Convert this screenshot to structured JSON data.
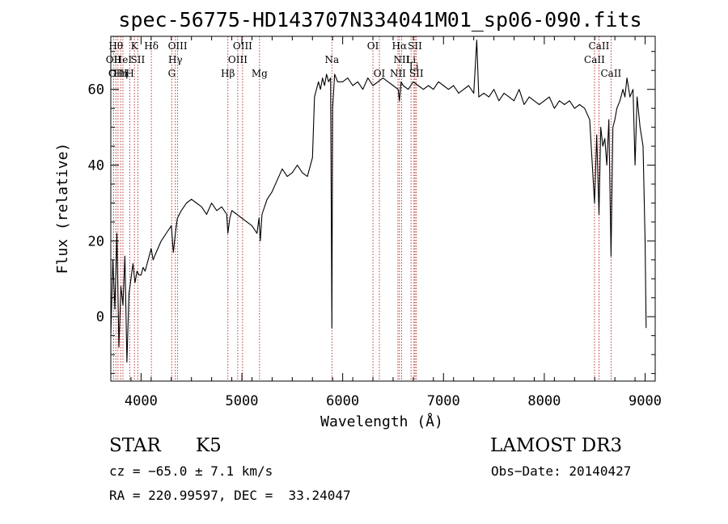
{
  "chart_data": {
    "type": "line",
    "title": "spec-56775-HD143707N334041M01_sp06-090.fits",
    "xlabel": "Wavelength (Å)",
    "ylabel": "Flux (relative)",
    "xlim": [
      3700,
      9100
    ],
    "ylim": [
      -17,
      74
    ],
    "xticks": [
      4000,
      5000,
      6000,
      7000,
      8000,
      9000
    ],
    "yticks": [
      0,
      20,
      40,
      60
    ],
    "x_minor_step": 200,
    "y_minor_step": 5,
    "series": [
      {
        "name": "flux",
        "x": [
          3700,
          3720,
          3740,
          3760,
          3780,
          3800,
          3820,
          3840,
          3860,
          3880,
          3900,
          3920,
          3940,
          3960,
          3980,
          4000,
          4020,
          4040,
          4060,
          4080,
          4100,
          4120,
          4150,
          4200,
          4250,
          4300,
          4320,
          4340,
          4360,
          4400,
          4450,
          4500,
          4550,
          4600,
          4650,
          4700,
          4750,
          4800,
          4850,
          4861,
          4880,
          4900,
          4950,
          5000,
          5050,
          5100,
          5150,
          5170,
          5183,
          5200,
          5250,
          5300,
          5350,
          5400,
          5450,
          5500,
          5550,
          5600,
          5650,
          5700,
          5720,
          5740,
          5760,
          5780,
          5800,
          5820,
          5840,
          5860,
          5880,
          5893,
          5900,
          5920,
          5950,
          6000,
          6050,
          6100,
          6150,
          6200,
          6250,
          6300,
          6350,
          6400,
          6450,
          6500,
          6550,
          6563,
          6580,
          6600,
          6650,
          6700,
          6750,
          6800,
          6850,
          6900,
          6950,
          7000,
          7050,
          7100,
          7150,
          7200,
          7250,
          7300,
          7330,
          7350,
          7400,
          7450,
          7500,
          7550,
          7600,
          7650,
          7700,
          7750,
          7800,
          7850,
          7900,
          7950,
          8000,
          8050,
          8100,
          8150,
          8200,
          8250,
          8300,
          8350,
          8400,
          8450,
          8498,
          8520,
          8542,
          8560,
          8580,
          8600,
          8620,
          8640,
          8662,
          8680,
          8700,
          8720,
          8750,
          8780,
          8800,
          8820,
          8850,
          8880,
          8900,
          8920,
          8950,
          8980,
          9000,
          9010
        ],
        "values": [
          -5,
          15,
          2,
          22,
          -8,
          8,
          3,
          16,
          -12,
          6,
          10,
          14,
          9,
          12,
          11,
          11,
          13,
          12,
          14,
          16,
          18,
          15,
          17,
          20,
          22,
          24,
          17,
          22,
          26,
          28,
          30,
          31,
          30,
          29,
          27,
          30,
          28,
          29,
          27,
          22,
          26,
          28,
          27,
          26,
          25,
          24,
          22,
          26,
          20,
          27,
          31,
          33,
          36,
          39,
          37,
          38,
          40,
          38,
          37,
          42,
          58,
          60,
          62,
          60,
          63,
          61,
          64,
          62,
          63,
          -3,
          55,
          64,
          62,
          62,
          63,
          61,
          62,
          60,
          63,
          61,
          62,
          63,
          62,
          61,
          60,
          57,
          62,
          61,
          60,
          62,
          61,
          60,
          61,
          60,
          62,
          61,
          60,
          61,
          59,
          60,
          61,
          59,
          73,
          58,
          59,
          58,
          60,
          57,
          59,
          58,
          57,
          60,
          56,
          58,
          57,
          56,
          57,
          58,
          55,
          57,
          56,
          57,
          55,
          56,
          55,
          52,
          30,
          48,
          27,
          50,
          45,
          47,
          40,
          52,
          16,
          50,
          52,
          55,
          57,
          60,
          58,
          63,
          58,
          60,
          40,
          58,
          50,
          45,
          20,
          -3
        ]
      }
    ],
    "line_labels": [
      {
        "wavelength": 3727,
        "label": "OII",
        "row": 2
      },
      {
        "wavelength": 3750,
        "label": "Hθ",
        "row": 1
      },
      {
        "wavelength": 3771,
        "label": "OIII",
        "row": 3
      },
      {
        "wavelength": 3798,
        "label": "Hη",
        "row": 3
      },
      {
        "wavelength": 3820,
        "label": "HeI",
        "row": 2
      },
      {
        "wavelength": 3889,
        "label": "H",
        "row": 3
      },
      {
        "wavelength": 3934,
        "label": "K",
        "row": 1
      },
      {
        "wavelength": 3968,
        "label": "SII",
        "row": 2
      },
      {
        "wavelength": 4102,
        "label": "Hδ",
        "row": 1
      },
      {
        "wavelength": 4305,
        "label": "G",
        "row": 3
      },
      {
        "wavelength": 4340,
        "label": "Hγ",
        "row": 2
      },
      {
        "wavelength": 4363,
        "label": "OIII",
        "row": 1
      },
      {
        "wavelength": 4861,
        "label": "Hβ",
        "row": 3
      },
      {
        "wavelength": 4959,
        "label": "OIII",
        "row": 2
      },
      {
        "wavelength": 5007,
        "label": "OIII",
        "row": 1
      },
      {
        "wavelength": 5175,
        "label": "Mg",
        "row": 3
      },
      {
        "wavelength": 5893,
        "label": "Na",
        "row": 2
      },
      {
        "wavelength": 6300,
        "label": "OI",
        "row": 1
      },
      {
        "wavelength": 6364,
        "label": "OI",
        "row": 3
      },
      {
        "wavelength": 6548,
        "label": "NII",
        "row": 3
      },
      {
        "wavelength": 6563,
        "label": "Hα",
        "row": 1
      },
      {
        "wavelength": 6584,
        "label": "NII",
        "row": 2
      },
      {
        "wavelength": 6678,
        "label": "Li",
        "row": 2
      },
      {
        "wavelength": 6707,
        "label": "Li",
        "row": 2.5
      },
      {
        "wavelength": 6717,
        "label": "SII",
        "row": 1
      },
      {
        "wavelength": 6731,
        "label": "SII",
        "row": 3
      },
      {
        "wavelength": 8498,
        "label": "CaII",
        "row": 2
      },
      {
        "wavelength": 8542,
        "label": "CaII",
        "row": 1
      },
      {
        "wavelength": 8662,
        "label": "CaII",
        "row": 3
      }
    ]
  },
  "info": {
    "class": "STAR",
    "subclass": "K5",
    "survey": "LAMOST DR3",
    "cz": "cz = −65.0 ± 7.1 km/s",
    "obs_date": "Obs−Date: 20140427",
    "coords": "RA = 220.99597, DEC =  33.24047"
  },
  "colors": {
    "line_marker": "#b22222",
    "spectrum": "#000000"
  }
}
